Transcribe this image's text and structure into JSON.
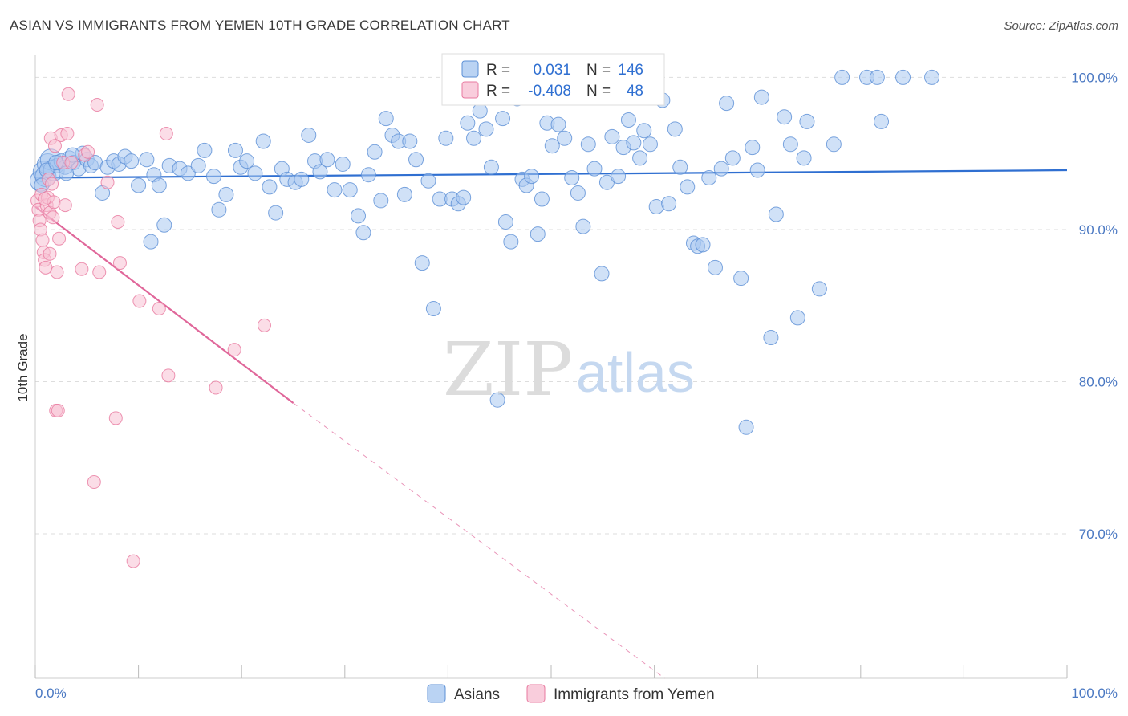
{
  "title": "ASIAN VS IMMIGRANTS FROM YEMEN 10TH GRADE CORRELATION CHART",
  "source": "Source: ZipAtlas.com",
  "watermark": {
    "zip": "ZIP",
    "atlas": "atlas"
  },
  "colors": {
    "asian_fill": "#a9c8f0",
    "asian_stroke": "#5b8fd6",
    "asian_line": "#2f6fd1",
    "yemen_fill": "#f7c1d3",
    "yemen_stroke": "#e8799f",
    "yemen_line": "#e0679a",
    "grid": "#dddddd",
    "tick_label": "#4a78c2"
  },
  "legend": {
    "r_label": "R =",
    "n_label": "N =",
    "rows": [
      {
        "series": "asian",
        "r": "0.031",
        "n": "146"
      },
      {
        "series": "yemen",
        "r": "-0.408",
        "n": "48"
      }
    ]
  },
  "bottom_legend": [
    "Asians",
    "Immigrants from Yemen"
  ],
  "chart_data": {
    "type": "scatter",
    "title": "ASIAN VS IMMIGRANTS FROM YEMEN 10TH GRADE CORRELATION CHART",
    "xlabel": "",
    "ylabel": "10th Grade",
    "xlim": [
      0,
      100
    ],
    "ylim": [
      60.5,
      101.5
    ],
    "x_tick_labels": [
      "0.0%",
      "100.0%"
    ],
    "y_ticks": [
      70,
      80,
      90,
      100
    ],
    "y_tick_labels": [
      "70.0%",
      "80.0%",
      "90.0%",
      "100.0%"
    ],
    "grid": true,
    "legend_position": "top-center",
    "series": [
      {
        "name": "Asians",
        "r": 0.031,
        "n": 146,
        "trend": {
          "x": [
            0,
            100
          ],
          "y": [
            93.4,
            93.9
          ],
          "style": "solid"
        },
        "points": [
          [
            0.5,
            93.2
          ],
          [
            0.8,
            93.8
          ],
          [
            1.0,
            93.5
          ],
          [
            1.2,
            94.3
          ],
          [
            1.5,
            94.6
          ],
          [
            1.8,
            93.9
          ],
          [
            2.1,
            94.2
          ],
          [
            2.5,
            94.5
          ],
          [
            2.9,
            94.1
          ],
          [
            3.3,
            94.7
          ],
          [
            3.7,
            94.4
          ],
          [
            4.2,
            94.0
          ],
          [
            4.6,
            95.0
          ],
          [
            5.0,
            94.6
          ],
          [
            5.4,
            94.2
          ],
          [
            5.8,
            94.4
          ],
          [
            6.5,
            92.4
          ],
          [
            7.0,
            94.1
          ],
          [
            7.6,
            94.5
          ],
          [
            8.1,
            94.3
          ],
          [
            8.7,
            94.8
          ],
          [
            9.3,
            94.5
          ],
          [
            10.0,
            92.9
          ],
          [
            10.8,
            94.6
          ],
          [
            11.5,
            93.6
          ],
          [
            12.0,
            92.9
          ],
          [
            12.5,
            90.3
          ],
          [
            11.2,
            89.2
          ],
          [
            13.0,
            94.2
          ],
          [
            14.0,
            94.0
          ],
          [
            14.8,
            93.7
          ],
          [
            15.8,
            94.2
          ],
          [
            16.4,
            95.2
          ],
          [
            17.3,
            93.5
          ],
          [
            17.8,
            91.3
          ],
          [
            18.5,
            92.3
          ],
          [
            19.4,
            95.2
          ],
          [
            19.9,
            94.1
          ],
          [
            20.5,
            94.5
          ],
          [
            21.3,
            93.7
          ],
          [
            22.1,
            95.8
          ],
          [
            22.7,
            92.8
          ],
          [
            23.3,
            91.1
          ],
          [
            23.9,
            94.0
          ],
          [
            24.4,
            93.3
          ],
          [
            25.2,
            93.1
          ],
          [
            25.8,
            93.3
          ],
          [
            26.5,
            96.2
          ],
          [
            27.1,
            94.5
          ],
          [
            27.6,
            93.8
          ],
          [
            28.3,
            94.6
          ],
          [
            29.0,
            92.6
          ],
          [
            29.8,
            94.3
          ],
          [
            30.5,
            92.6
          ],
          [
            31.3,
            90.9
          ],
          [
            31.8,
            89.8
          ],
          [
            32.3,
            93.6
          ],
          [
            32.9,
            95.1
          ],
          [
            33.5,
            91.9
          ],
          [
            34.0,
            97.3
          ],
          [
            34.6,
            96.2
          ],
          [
            35.2,
            95.8
          ],
          [
            35.8,
            92.3
          ],
          [
            36.3,
            95.8
          ],
          [
            36.9,
            94.6
          ],
          [
            37.5,
            87.8
          ],
          [
            38.1,
            93.2
          ],
          [
            38.6,
            84.8
          ],
          [
            39.2,
            92.0
          ],
          [
            39.8,
            96.0
          ],
          [
            40.4,
            92.0
          ],
          [
            41.0,
            91.7
          ],
          [
            41.5,
            92.1
          ],
          [
            41.9,
            97.0
          ],
          [
            42.5,
            96.0
          ],
          [
            43.1,
            97.8
          ],
          [
            43.7,
            96.6
          ],
          [
            44.2,
            94.1
          ],
          [
            44.8,
            78.8
          ],
          [
            45.3,
            97.3
          ],
          [
            45.6,
            90.5
          ],
          [
            46.1,
            89.2
          ],
          [
            46.7,
            98.6
          ],
          [
            47.2,
            93.3
          ],
          [
            47.6,
            92.9
          ],
          [
            48.1,
            93.5
          ],
          [
            48.7,
            89.7
          ],
          [
            49.1,
            92.0
          ],
          [
            49.6,
            97.0
          ],
          [
            50.1,
            95.5
          ],
          [
            50.7,
            96.9
          ],
          [
            51.3,
            96.0
          ],
          [
            52.0,
            93.4
          ],
          [
            52.6,
            92.4
          ],
          [
            53.1,
            90.2
          ],
          [
            53.6,
            95.6
          ],
          [
            54.2,
            94.0
          ],
          [
            54.9,
            87.1
          ],
          [
            55.4,
            93.1
          ],
          [
            55.9,
            96.1
          ],
          [
            56.5,
            93.5
          ],
          [
            57.0,
            95.4
          ],
          [
            57.5,
            97.2
          ],
          [
            58.0,
            95.7
          ],
          [
            58.6,
            94.7
          ],
          [
            59.0,
            96.5
          ],
          [
            59.6,
            95.6
          ],
          [
            60.2,
            91.5
          ],
          [
            60.8,
            98.5
          ],
          [
            61.4,
            91.7
          ],
          [
            62.0,
            96.6
          ],
          [
            62.5,
            94.1
          ],
          [
            63.2,
            92.8
          ],
          [
            63.8,
            89.1
          ],
          [
            64.2,
            88.9
          ],
          [
            64.7,
            89.0
          ],
          [
            65.3,
            93.4
          ],
          [
            65.9,
            87.5
          ],
          [
            66.5,
            94.0
          ],
          [
            67.0,
            98.3
          ],
          [
            67.6,
            94.7
          ],
          [
            68.4,
            86.8
          ],
          [
            68.9,
            77.0
          ],
          [
            69.5,
            95.4
          ],
          [
            70.0,
            93.9
          ],
          [
            70.4,
            98.7
          ],
          [
            71.3,
            82.9
          ],
          [
            71.8,
            91.0
          ],
          [
            72.6,
            97.4
          ],
          [
            73.2,
            95.6
          ],
          [
            73.9,
            84.2
          ],
          [
            74.5,
            94.7
          ],
          [
            74.8,
            97.1
          ],
          [
            76.0,
            86.1
          ],
          [
            77.4,
            95.6
          ],
          [
            78.2,
            100.0
          ],
          [
            80.6,
            100.0
          ],
          [
            81.6,
            100.0
          ],
          [
            84.1,
            100.0
          ],
          [
            86.9,
            100.0
          ],
          [
            82.0,
            97.1
          ],
          [
            0.6,
            92.9
          ],
          [
            1.1,
            93.9
          ],
          [
            2.0,
            94.4
          ],
          [
            3.0,
            93.7
          ],
          [
            3.6,
            94.9
          ]
        ]
      },
      {
        "name": "Immigrants from Yemen",
        "r": -0.408,
        "n": 48,
        "trend": {
          "x": [
            0,
            25
          ],
          "y": [
            91.5,
            78.6
          ],
          "style": "solid",
          "extend_dashed_to": [
            61,
            60.5
          ]
        },
        "points": [
          [
            0.2,
            91.9
          ],
          [
            0.3,
            91.3
          ],
          [
            0.4,
            90.6
          ],
          [
            0.5,
            90.0
          ],
          [
            0.6,
            92.3
          ],
          [
            0.7,
            89.3
          ],
          [
            0.8,
            88.5
          ],
          [
            0.9,
            88.0
          ],
          [
            1.0,
            87.5
          ],
          [
            1.1,
            91.6
          ],
          [
            1.2,
            92.1
          ],
          [
            1.3,
            93.3
          ],
          [
            1.4,
            91.1
          ],
          [
            1.5,
            96.0
          ],
          [
            1.6,
            93.0
          ],
          [
            1.7,
            90.8
          ],
          [
            1.8,
            91.8
          ],
          [
            1.9,
            95.5
          ],
          [
            2.0,
            78.1
          ],
          [
            2.1,
            87.2
          ],
          [
            2.2,
            78.1
          ],
          [
            2.3,
            89.4
          ],
          [
            2.5,
            96.2
          ],
          [
            2.7,
            94.4
          ],
          [
            2.9,
            91.6
          ],
          [
            3.1,
            96.3
          ],
          [
            3.2,
            98.9
          ],
          [
            3.5,
            94.4
          ],
          [
            4.5,
            87.4
          ],
          [
            4.8,
            94.9
          ],
          [
            5.1,
            95.1
          ],
          [
            5.7,
            73.4
          ],
          [
            6.0,
            98.2
          ],
          [
            6.2,
            87.2
          ],
          [
            7.0,
            93.1
          ],
          [
            7.8,
            77.6
          ],
          [
            8.0,
            90.5
          ],
          [
            8.2,
            87.8
          ],
          [
            9.5,
            68.2
          ],
          [
            10.1,
            85.3
          ],
          [
            12.0,
            84.8
          ],
          [
            12.9,
            80.4
          ],
          [
            12.7,
            96.3
          ],
          [
            17.5,
            79.6
          ],
          [
            19.3,
            82.1
          ],
          [
            22.2,
            83.7
          ],
          [
            0.9,
            92.0
          ],
          [
            1.4,
            88.4
          ]
        ]
      }
    ]
  }
}
